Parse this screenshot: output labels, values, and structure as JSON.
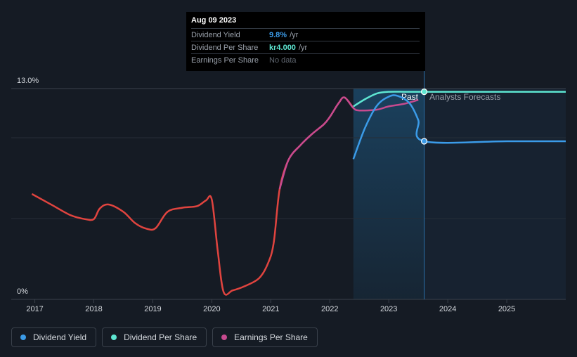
{
  "tooltip": {
    "date": "Aug 09 2023",
    "rows": [
      {
        "label": "Dividend Yield",
        "value": "9.8%",
        "unit": "/yr",
        "color": "#3b9be8"
      },
      {
        "label": "Dividend Per Share",
        "value": "kr4.000",
        "unit": "/yr",
        "color": "#5ee6d2"
      },
      {
        "label": "Earnings Per Share",
        "value": "No data",
        "unit": "",
        "color": "#5f6670"
      }
    ]
  },
  "labels": {
    "past": "Past",
    "forecast": "Analysts Forecasts"
  },
  "legend": [
    {
      "label": "Dividend Yield",
      "color": "#3b9be8"
    },
    {
      "label": "Dividend Per Share",
      "color": "#5ee6d2"
    },
    {
      "label": "Earnings Per Share",
      "color": "#c74a8f"
    }
  ],
  "chart_data": {
    "type": "line",
    "title": "",
    "xlabel": "",
    "ylabel": "",
    "y_tick_labels": [
      "0%",
      "13.0%"
    ],
    "ylim": [
      0,
      13.0
    ],
    "xlim": [
      2016.6,
      2026.0
    ],
    "x_ticks": [
      2017,
      2018,
      2019,
      2020,
      2021,
      2022,
      2023,
      2024,
      2025
    ],
    "past_boundary": 2023.6,
    "series": [
      {
        "name": "Dividend Yield (history)",
        "color": "#e0443f",
        "points": [
          [
            2016.95,
            6.5
          ],
          [
            2017.3,
            5.8
          ],
          [
            2017.6,
            5.2
          ],
          [
            2017.85,
            4.95
          ],
          [
            2018.0,
            4.95
          ],
          [
            2018.1,
            5.6
          ],
          [
            2018.25,
            5.85
          ],
          [
            2018.5,
            5.4
          ],
          [
            2018.7,
            4.7
          ],
          [
            2018.9,
            4.35
          ],
          [
            2019.05,
            4.4
          ],
          [
            2019.25,
            5.4
          ],
          [
            2019.5,
            5.65
          ],
          [
            2019.75,
            5.75
          ],
          [
            2019.9,
            6.1
          ],
          [
            2020.0,
            6.15
          ],
          [
            2020.1,
            3.0
          ],
          [
            2020.2,
            0.45
          ],
          [
            2020.35,
            0.55
          ],
          [
            2020.55,
            0.8
          ],
          [
            2020.8,
            1.3
          ],
          [
            2020.95,
            2.2
          ],
          [
            2021.05,
            3.5
          ],
          [
            2021.15,
            6.8
          ],
          [
            2021.3,
            8.6
          ],
          [
            2021.5,
            9.5
          ],
          [
            2021.7,
            10.2
          ],
          [
            2021.9,
            10.8
          ],
          [
            2022.0,
            11.25
          ],
          [
            2022.15,
            12.1
          ],
          [
            2022.25,
            12.45
          ],
          [
            2022.4,
            11.8
          ]
        ]
      },
      {
        "name": "Earnings Per Share",
        "color": "#c74a8f",
        "points": [
          [
            2021.15,
            6.8
          ],
          [
            2021.3,
            8.6
          ],
          [
            2021.5,
            9.5
          ],
          [
            2021.7,
            10.2
          ],
          [
            2021.9,
            10.8
          ],
          [
            2022.0,
            11.25
          ],
          [
            2022.15,
            12.1
          ],
          [
            2022.25,
            12.45
          ],
          [
            2022.4,
            11.8
          ],
          [
            2022.5,
            11.65
          ],
          [
            2022.8,
            11.7
          ],
          [
            2023.0,
            11.9
          ],
          [
            2023.25,
            12.05
          ],
          [
            2023.5,
            12.3
          ]
        ]
      },
      {
        "name": "Dividend Yield",
        "color": "#3b9be8",
        "points": [
          [
            2022.4,
            8.65
          ],
          [
            2022.6,
            10.6
          ],
          [
            2022.8,
            11.95
          ],
          [
            2023.0,
            12.5
          ],
          [
            2023.15,
            12.55
          ],
          [
            2023.35,
            12.1
          ],
          [
            2023.5,
            11.05
          ],
          [
            2023.6,
            9.75
          ],
          [
            2025.0,
            9.75
          ],
          [
            2026.0,
            9.75
          ]
        ]
      },
      {
        "name": "Dividend Per Share",
        "color": "#5ee6d2",
        "points": [
          [
            2022.4,
            11.9
          ],
          [
            2022.6,
            12.35
          ],
          [
            2022.8,
            12.7
          ],
          [
            2023.0,
            12.8
          ],
          [
            2023.3,
            12.8
          ],
          [
            2023.6,
            12.8
          ],
          [
            2026.0,
            12.8
          ]
        ]
      }
    ]
  }
}
